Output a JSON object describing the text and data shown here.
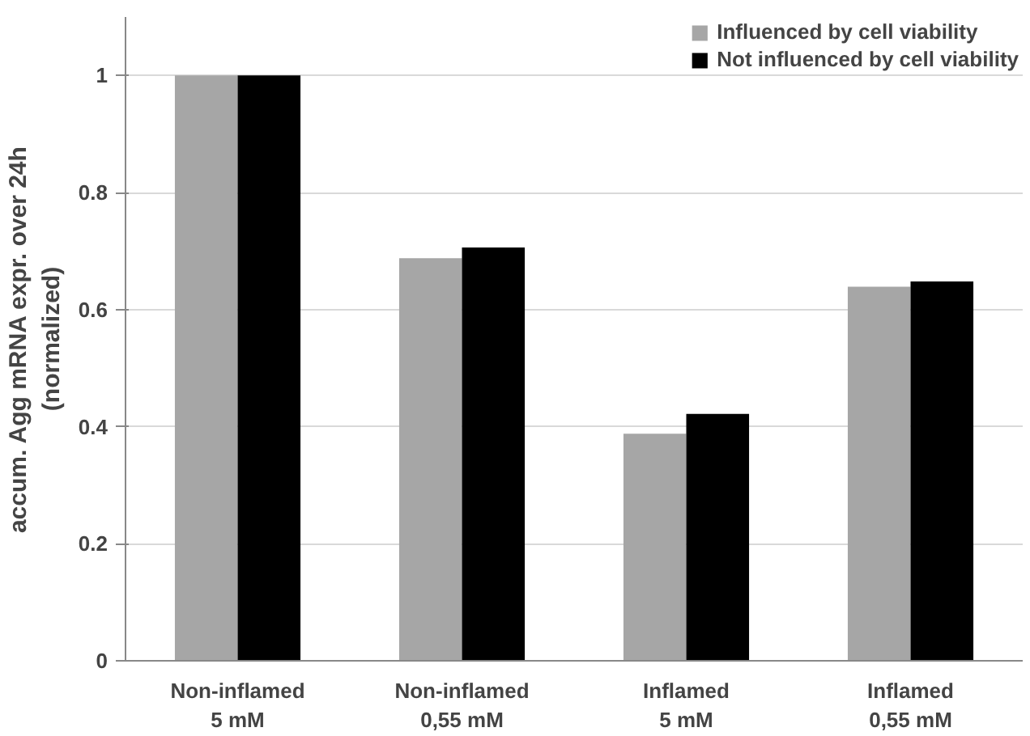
{
  "chart_data": {
    "type": "bar",
    "ylabel": "accum. Agg mRNA expr. over 24h\n(normalized)",
    "categories": [
      "Non-inflamed\n5 mM",
      "Non-inflamed\n0,55 mM",
      "Inflamed\n5 mM",
      "Inflamed\n0,55 mM"
    ],
    "series": [
      {
        "name": "Influenced by cell viability",
        "color": "#a6a6a6",
        "values": [
          1.0,
          0.688,
          0.388,
          0.639
        ]
      },
      {
        "name": "Not influenced by cell viability",
        "color": "#000000",
        "values": [
          1.0,
          0.706,
          0.422,
          0.648
        ]
      }
    ],
    "ylim": [
      0,
      1.1
    ],
    "yticks": [
      0,
      0.2,
      0.4,
      0.6,
      0.8,
      1
    ],
    "grid": "y",
    "legend": "top right"
  }
}
